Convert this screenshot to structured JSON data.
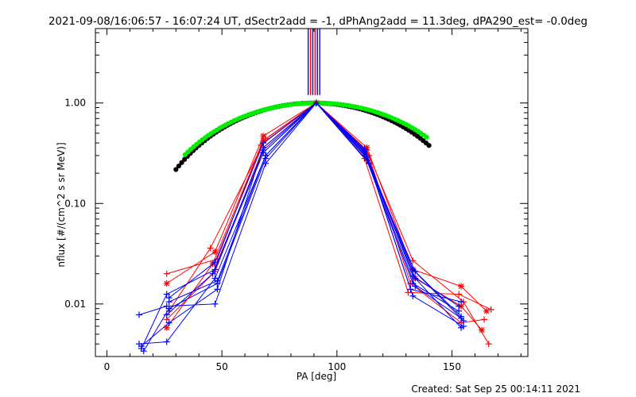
{
  "chart_data": {
    "type": "scatter",
    "title": "2021-09-08/16:06:57 - 16:07:24 UT, dSectr2add = -1, dPhAng2add = 11.3deg, dPA290_est= -0.0deg",
    "xlabel": "PA [deg]",
    "ylabel": "nflux [#/(cm^2 s sr MeV)]",
    "footer": "Created: Sat Sep 25 00:14:11 2021",
    "xlim": [
      -5,
      183
    ],
    "ylim": [
      0.003,
      5.5
    ],
    "y_scale": "log",
    "grid": false,
    "legend": "none",
    "x_ticks": [
      {
        "value": 0,
        "label": "0"
      },
      {
        "value": 50,
        "label": "50"
      },
      {
        "value": 100,
        "label": "100"
      },
      {
        "value": 150,
        "label": "150"
      }
    ],
    "y_ticks": [
      {
        "value": 0.01,
        "label": "0.01"
      },
      {
        "value": 0.1,
        "label": "0.10"
      },
      {
        "value": 1,
        "label": "1.00"
      }
    ],
    "vertical_markers": [
      {
        "x": 87.5,
        "color": "#0000ff"
      },
      {
        "x": 88.5,
        "color": "#ff0000"
      },
      {
        "x": 89.5,
        "color": "#0000ff"
      },
      {
        "x": 90.5,
        "color": "#ff0000"
      },
      {
        "x": 91.5,
        "color": "#0000ff"
      },
      {
        "x": 92.5,
        "color": "#0000ff"
      }
    ],
    "model_curves": [
      {
        "color": "#000000",
        "marker": "filled-circle",
        "x_range": [
          30,
          140
        ],
        "peak": 1.0,
        "center": 90,
        "exponent": 2.2
      },
      {
        "color": "#00ee00",
        "marker": "filled-circle",
        "x_range": [
          34,
          140
        ],
        "peak": 1.0,
        "center": 91,
        "exponent": 1.95
      }
    ],
    "series": [
      {
        "color": "#ff0000",
        "marker": "asterisk",
        "x": [
          26,
          47,
          68,
          91,
          113,
          133,
          154,
          165
        ],
        "y": [
          0.016,
          0.033,
          0.47,
          1.0,
          0.36,
          0.022,
          0.015,
          0.0085
        ]
      },
      {
        "color": "#ff0000",
        "marker": "asterisk",
        "x": [
          26,
          46,
          68,
          91,
          112,
          134,
          154,
          163
        ],
        "y": [
          0.0058,
          0.025,
          0.42,
          1.0,
          0.32,
          0.018,
          0.0095,
          0.0055
        ]
      },
      {
        "color": "#ff0000",
        "marker": "plus",
        "x": [
          26,
          48,
          67,
          91,
          114,
          133,
          155,
          166
        ],
        "y": [
          0.02,
          0.028,
          0.38,
          1.0,
          0.3,
          0.027,
          0.0105,
          0.004
        ]
      },
      {
        "color": "#ff0000",
        "marker": "plus",
        "x": [
          27,
          45,
          69,
          91,
          113,
          132,
          154,
          164
        ],
        "y": [
          0.0085,
          0.036,
          0.44,
          1.0,
          0.34,
          0.016,
          0.0065,
          0.007
        ]
      },
      {
        "color": "#ff0000",
        "marker": "plus",
        "x": [
          26,
          47,
          68,
          91,
          112,
          131,
          153,
          167
        ],
        "y": [
          0.007,
          0.021,
          0.36,
          1.0,
          0.28,
          0.013,
          0.0125,
          0.0088
        ]
      },
      {
        "color": "#0000ff",
        "marker": "plus",
        "x": [
          14,
          26,
          47,
          69,
          91,
          112,
          134,
          154
        ],
        "y": [
          0.0078,
          0.0095,
          0.01,
          0.25,
          1.0,
          0.3,
          0.021,
          0.0075
        ]
      },
      {
        "color": "#0000ff",
        "marker": "plus",
        "x": [
          14,
          26,
          47,
          69,
          91,
          113,
          133,
          153
        ],
        "y": [
          0.004,
          0.0042,
          0.018,
          0.3,
          1.0,
          0.27,
          0.016,
          0.0085
        ]
      },
      {
        "color": "#0000ff",
        "marker": "plus",
        "x": [
          15,
          27,
          48,
          68,
          91,
          112,
          133,
          155
        ],
        "y": [
          0.0038,
          0.0065,
          0.014,
          0.36,
          1.0,
          0.34,
          0.012,
          0.006
        ]
      },
      {
        "color": "#0000ff",
        "marker": "plus",
        "x": [
          15,
          26,
          47,
          68,
          91,
          114,
          134,
          154
        ],
        "y": [
          0.0036,
          0.0125,
          0.022,
          0.32,
          1.0,
          0.25,
          0.018,
          0.0058
        ]
      },
      {
        "color": "#0000ff",
        "marker": "plus",
        "x": [
          16,
          27,
          48,
          69,
          91,
          113,
          132,
          154
        ],
        "y": [
          0.0034,
          0.009,
          0.016,
          0.28,
          1.0,
          0.3,
          0.014,
          0.0105
        ]
      },
      {
        "color": "#0000ff",
        "marker": "plus",
        "x": [
          27,
          47,
          68,
          91,
          112,
          133,
          153
        ],
        "y": [
          0.0115,
          0.026,
          0.4,
          1.0,
          0.35,
          0.019,
          0.0095
        ]
      },
      {
        "color": "#0000ff",
        "marker": "plus",
        "x": [
          26,
          46,
          68,
          91,
          113,
          133,
          155
        ],
        "y": [
          0.0078,
          0.02,
          0.34,
          1.0,
          0.29,
          0.022,
          0.0068
        ]
      },
      {
        "color": "#0000ff",
        "marker": "plus",
        "x": [
          27,
          48,
          69,
          91,
          112,
          134,
          154
        ],
        "y": [
          0.0105,
          0.017,
          0.3,
          1.0,
          0.33,
          0.015,
          0.0072
        ]
      }
    ]
  }
}
